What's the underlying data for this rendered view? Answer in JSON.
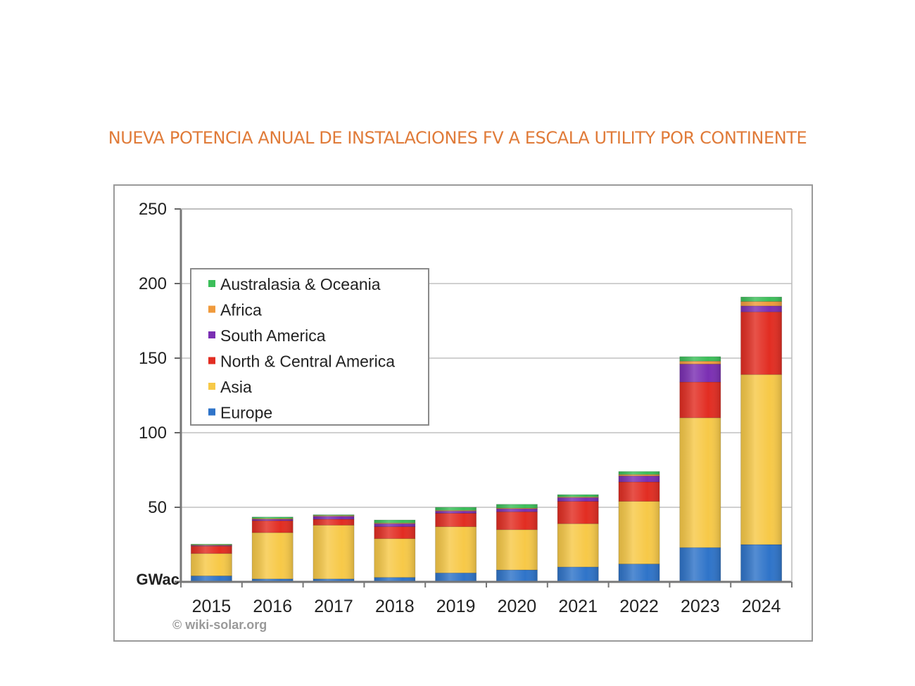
{
  "title": "NUEVA POTENCIA ANUAL DE INSTALACIONES FV A ESCALA UTILITY POR CONTINENTE",
  "chart_data": {
    "type": "bar",
    "stacked": true,
    "title": "NUEVA POTENCIA ANUAL DE INSTALACIONES FV A ESCALA UTILITY POR CONTINENTE",
    "xlabel": "",
    "ylabel": "GWac",
    "ylim": [
      0,
      250
    ],
    "yticks": [
      "50",
      "100",
      "150",
      "200",
      "250"
    ],
    "ytick_values": [
      50,
      100,
      150,
      200,
      250
    ],
    "grid": true,
    "legend_position": "top-left",
    "categories": [
      "2015",
      "2016",
      "2017",
      "2018",
      "2019",
      "2020",
      "2021",
      "2022",
      "2023",
      "2024"
    ],
    "series": [
      {
        "name": "Europe",
        "color": "#2f74c9",
        "values": [
          4,
          2,
          2,
          3,
          6,
          8,
          10,
          12,
          23,
          25
        ]
      },
      {
        "name": "Asia",
        "color": "#f7c948",
        "values": [
          15,
          31,
          36,
          26,
          31,
          27,
          29,
          42,
          87,
          114
        ]
      },
      {
        "name": "North & Central America",
        "color": "#e22d22",
        "values": [
          5,
          8,
          4,
          8,
          9,
          12,
          15,
          13,
          24,
          42
        ]
      },
      {
        "name": "South America",
        "color": "#7b2fb3",
        "values": [
          0.5,
          1,
          2,
          2,
          1.5,
          2,
          2.5,
          4,
          12,
          4
        ]
      },
      {
        "name": "Africa",
        "color": "#f09a3c",
        "values": [
          0.3,
          0.5,
          0.5,
          0.5,
          0.5,
          0.5,
          0.5,
          1,
          2,
          3
        ]
      },
      {
        "name": "Australasia & Oceania",
        "color": "#3cbf5a",
        "values": [
          0.5,
          1,
          0.5,
          2,
          2,
          2.5,
          1.5,
          2,
          3,
          3
        ]
      }
    ],
    "legend_order": [
      "Australasia & Oceania",
      "Africa",
      "South America",
      "North & Central America",
      "Asia",
      "Europe"
    ],
    "watermark": "© wiki-solar.org"
  }
}
